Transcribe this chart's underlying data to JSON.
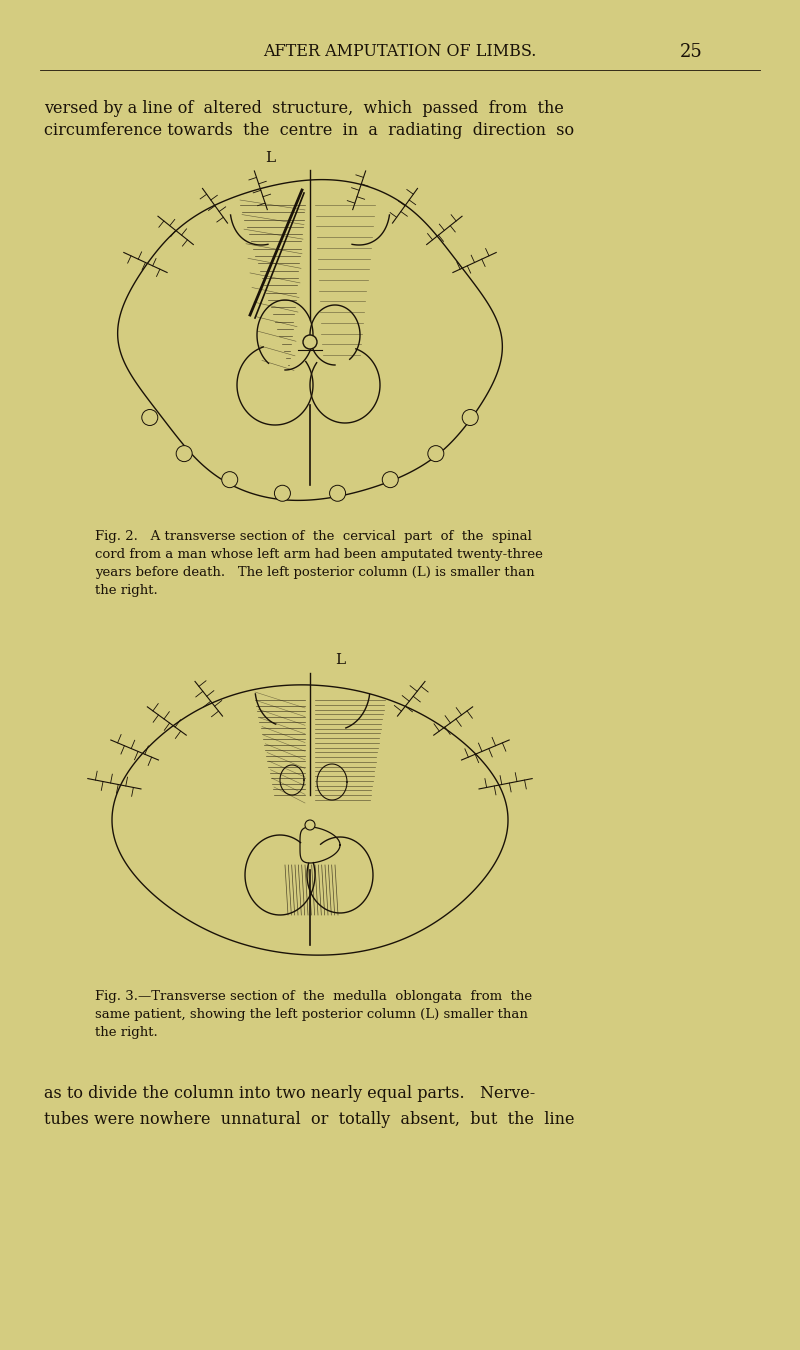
{
  "bg_color": "#d4cc80",
  "text_color": "#1a1208",
  "header_text": "AFTER AMPUTATION OF LIMBS.",
  "page_number": "25",
  "top_para_line1": "versed by a line of  altered  structure,  which  passed  from  the",
  "top_para_line2": "circumference towards  the  centre  in  a  radiating  direction  so",
  "fig2_caption_line1": "Fig. 2.   A transverse section of  the  cervical  part  of  the  spinal",
  "fig2_caption_line2": "cord from a man whose left arm had been amputated twenty-three",
  "fig2_caption_line3": "years before death.   The left posterior column (L) is smaller than",
  "fig2_caption_line4": "the right.",
  "fig3_caption_line1": "Fig. 3.—Transverse section of  the  medulla  oblongata  from  the",
  "fig3_caption_line2": "same patient, showing the left posterior column (L) smaller than",
  "fig3_caption_line3": "the right.",
  "bottom_para_line1": "as to divide the column into two nearly equal parts.   Nerve-",
  "bottom_para_line2": "tubes were nowhere  unnatural  or  totally  absent,  but  the  line",
  "lc": "#1a1208"
}
